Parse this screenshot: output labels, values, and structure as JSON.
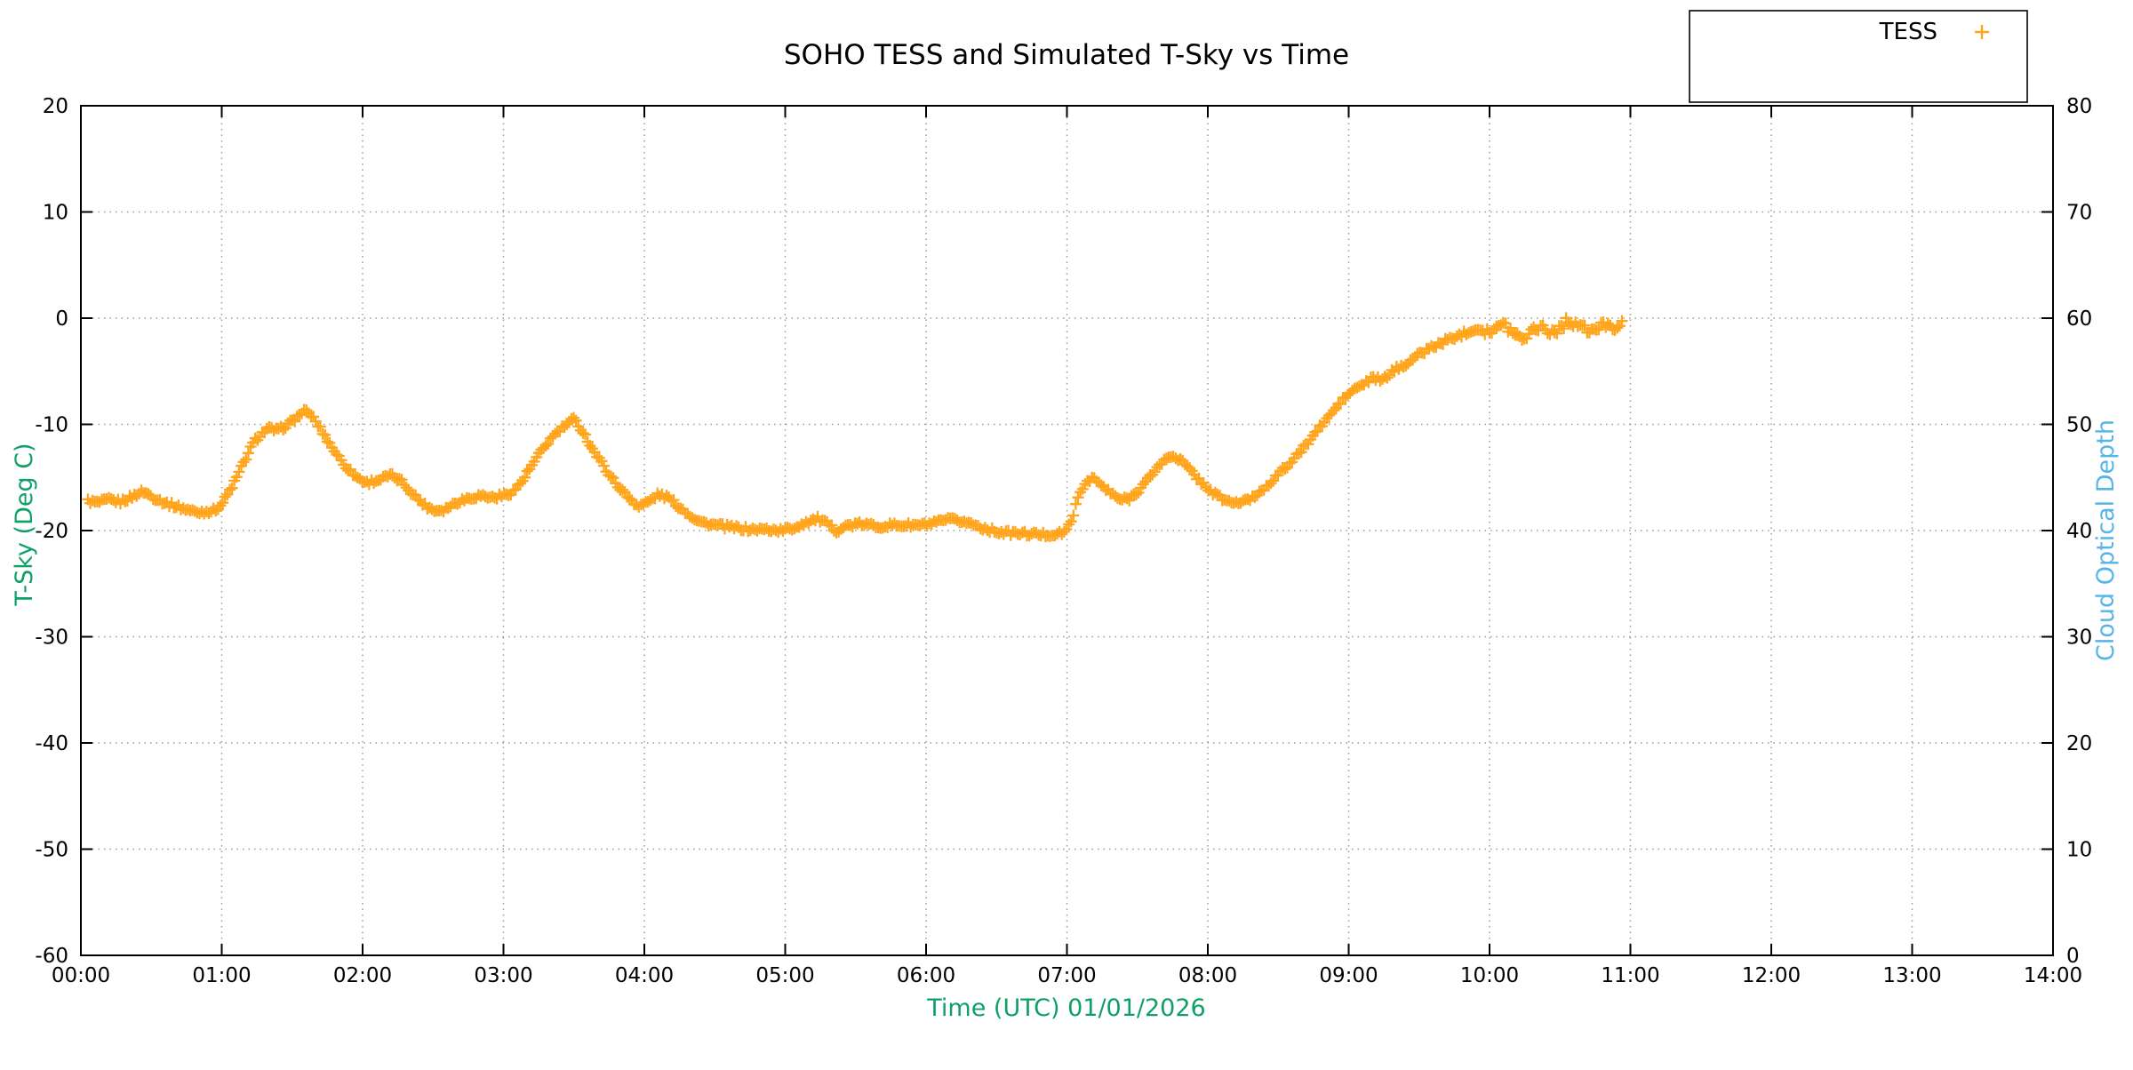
{
  "page": {
    "background": "#FFFFFF"
  },
  "colors": {
    "series_orange": "#FFA41B",
    "axis_left_green": "#0FA068",
    "axis_right_blue": "#56B4E9",
    "grid_gray": "#9A9A9A",
    "border_black": "#000000",
    "text_black": "#000000",
    "background": "#FFFFFF"
  },
  "legend": {
    "position": "top-right",
    "entries": [
      {
        "label": "TESS",
        "marker": "plus-icon",
        "color": "#FFA41B"
      }
    ]
  },
  "chart_data": {
    "type": "scatter",
    "title": "SOHO TESS and Simulated T-Sky vs Time",
    "xlabel": "Time (UTC)    01/01/2026",
    "ylabel_left": "T-Sky (Deg C)",
    "ylabel_right": "Cloud Optical Depth",
    "x_range_hours": [
      0,
      14
    ],
    "x_tick_labels": [
      "00:00",
      "01:00",
      "02:00",
      "03:00",
      "04:00",
      "05:00",
      "06:00",
      "07:00",
      "08:00",
      "09:00",
      "10:00",
      "11:00",
      "12:00",
      "13:00",
      "14:00"
    ],
    "ylim_left": [
      -60,
      20
    ],
    "y_ticks_left": [
      20,
      10,
      0,
      -10,
      -20,
      -30,
      -40,
      -50,
      -60
    ],
    "ylim_right": [
      0,
      80
    ],
    "y_ticks_right": [
      80,
      70,
      60,
      50,
      40,
      30,
      20,
      10,
      0
    ],
    "grid": true,
    "grid_style": "dotted",
    "legend_position": "top-right",
    "marker": "plus",
    "series": [
      {
        "name": "TESS",
        "axis": "left",
        "marker": "plus",
        "color": "#FFA41B",
        "data_start": "00:03",
        "data_end": "10:57",
        "points_t_hours_vs_degC": [
          [
            0.05,
            -17.2
          ],
          [
            0.12,
            -17.4
          ],
          [
            0.2,
            -17.1
          ],
          [
            0.28,
            -17.3
          ],
          [
            0.35,
            -16.9
          ],
          [
            0.44,
            -16.3
          ],
          [
            0.52,
            -16.9
          ],
          [
            0.6,
            -17.4
          ],
          [
            0.72,
            -17.9
          ],
          [
            0.83,
            -18.3
          ],
          [
            0.95,
            -18.1
          ],
          [
            1.0,
            -17.5
          ],
          [
            1.05,
            -16.4
          ],
          [
            1.1,
            -15.2
          ],
          [
            1.17,
            -13.2
          ],
          [
            1.23,
            -11.6
          ],
          [
            1.28,
            -10.9
          ],
          [
            1.33,
            -10.4
          ],
          [
            1.4,
            -10.6
          ],
          [
            1.47,
            -10.0
          ],
          [
            1.53,
            -9.4
          ],
          [
            1.58,
            -8.7
          ],
          [
            1.64,
            -9.2
          ],
          [
            1.7,
            -10.4
          ],
          [
            1.78,
            -12.1
          ],
          [
            1.87,
            -13.8
          ],
          [
            1.95,
            -14.9
          ],
          [
            2.03,
            -15.5
          ],
          [
            2.12,
            -15.2
          ],
          [
            2.2,
            -14.8
          ],
          [
            2.28,
            -15.4
          ],
          [
            2.36,
            -16.6
          ],
          [
            2.44,
            -17.6
          ],
          [
            2.51,
            -18.1
          ],
          [
            2.58,
            -18.0
          ],
          [
            2.67,
            -17.3
          ],
          [
            2.76,
            -16.9
          ],
          [
            2.84,
            -16.7
          ],
          [
            2.92,
            -16.9
          ],
          [
            3.0,
            -16.7
          ],
          [
            3.07,
            -16.3
          ],
          [
            3.13,
            -15.4
          ],
          [
            3.2,
            -13.9
          ],
          [
            3.28,
            -12.3
          ],
          [
            3.36,
            -11.0
          ],
          [
            3.44,
            -10.1
          ],
          [
            3.5,
            -9.5
          ],
          [
            3.57,
            -10.8
          ],
          [
            3.64,
            -12.5
          ],
          [
            3.72,
            -14.1
          ],
          [
            3.8,
            -15.6
          ],
          [
            3.88,
            -16.8
          ],
          [
            3.96,
            -17.7
          ],
          [
            4.03,
            -17.3
          ],
          [
            4.1,
            -16.6
          ],
          [
            4.17,
            -16.9
          ],
          [
            4.25,
            -17.8
          ],
          [
            4.32,
            -18.5
          ],
          [
            4.4,
            -19.2
          ],
          [
            4.5,
            -19.5
          ],
          [
            4.62,
            -19.7
          ],
          [
            4.75,
            -19.9
          ],
          [
            4.87,
            -19.9
          ],
          [
            4.97,
            -20.0
          ],
          [
            5.05,
            -19.8
          ],
          [
            5.15,
            -19.2
          ],
          [
            5.23,
            -18.9
          ],
          [
            5.3,
            -19.4
          ],
          [
            5.36,
            -20.0
          ],
          [
            5.45,
            -19.5
          ],
          [
            5.55,
            -19.4
          ],
          [
            5.65,
            -19.6
          ],
          [
            5.75,
            -19.5
          ],
          [
            5.87,
            -19.5
          ],
          [
            5.97,
            -19.5
          ],
          [
            6.07,
            -19.3
          ],
          [
            6.15,
            -19.0
          ],
          [
            6.25,
            -19.1
          ],
          [
            6.33,
            -19.4
          ],
          [
            6.44,
            -19.9
          ],
          [
            6.55,
            -20.2
          ],
          [
            6.7,
            -20.3
          ],
          [
            6.85,
            -20.4
          ],
          [
            6.95,
            -20.3
          ],
          [
            7.0,
            -20.0
          ],
          [
            7.04,
            -18.6
          ],
          [
            7.09,
            -16.6
          ],
          [
            7.14,
            -15.3
          ],
          [
            7.18,
            -15.0
          ],
          [
            7.24,
            -15.7
          ],
          [
            7.31,
            -16.5
          ],
          [
            7.38,
            -17.1
          ],
          [
            7.44,
            -17.0
          ],
          [
            7.51,
            -16.2
          ],
          [
            7.58,
            -15.1
          ],
          [
            7.65,
            -13.9
          ],
          [
            7.71,
            -13.2
          ],
          [
            7.75,
            -12.9
          ],
          [
            7.81,
            -13.4
          ],
          [
            7.88,
            -14.4
          ],
          [
            7.95,
            -15.4
          ],
          [
            8.03,
            -16.4
          ],
          [
            8.1,
            -17.0
          ],
          [
            8.18,
            -17.4
          ],
          [
            8.26,
            -17.3
          ],
          [
            8.33,
            -16.8
          ],
          [
            8.4,
            -16.0
          ],
          [
            8.47,
            -15.1
          ],
          [
            8.54,
            -14.2
          ],
          [
            8.61,
            -13.3
          ],
          [
            8.68,
            -12.2
          ],
          [
            8.75,
            -11.0
          ],
          [
            8.82,
            -9.9
          ],
          [
            8.9,
            -8.6
          ],
          [
            8.97,
            -7.5
          ],
          [
            9.04,
            -6.7
          ],
          [
            9.12,
            -6.1
          ],
          [
            9.18,
            -5.6
          ],
          [
            9.24,
            -5.9
          ],
          [
            9.31,
            -5.0
          ],
          [
            9.39,
            -4.4
          ],
          [
            9.47,
            -3.7
          ],
          [
            9.55,
            -3.0
          ],
          [
            9.63,
            -2.5
          ],
          [
            9.71,
            -2.0
          ],
          [
            9.79,
            -1.6
          ],
          [
            9.87,
            -1.1
          ],
          [
            9.94,
            -1.0
          ],
          [
            10.02,
            -1.3
          ],
          [
            10.09,
            -0.6
          ],
          [
            10.16,
            -1.1
          ],
          [
            10.22,
            -1.9
          ],
          [
            10.29,
            -1.3
          ],
          [
            10.36,
            -0.6
          ],
          [
            10.43,
            -1.4
          ],
          [
            10.5,
            -0.9
          ],
          [
            10.56,
            -0.2
          ],
          [
            10.63,
            -0.6
          ],
          [
            10.7,
            -1.3
          ],
          [
            10.77,
            -1.0
          ],
          [
            10.83,
            -0.4
          ],
          [
            10.89,
            -0.8
          ],
          [
            10.95,
            -0.6
          ]
        ]
      }
    ]
  }
}
